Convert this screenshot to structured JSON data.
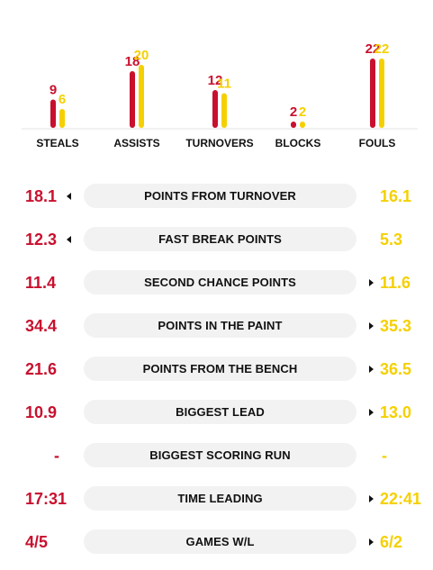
{
  "colors": {
    "home": "#c8102e",
    "away": "#f5d000",
    "pill_bg": "#f2f2f2",
    "text": "#111111"
  },
  "chart_data": {
    "type": "bar",
    "categories": [
      "STEALS",
      "ASSISTS",
      "TURNOVERS",
      "BLOCKS",
      "FOULS"
    ],
    "series": [
      {
        "values": [
          9,
          18,
          12,
          2,
          22
        ],
        "color": "#c8102e"
      },
      {
        "values": [
          6,
          20,
          11,
          2,
          22
        ],
        "color": "#f5d000"
      }
    ],
    "value_labels": [
      [
        "9",
        "6"
      ],
      [
        "18",
        "20"
      ],
      [
        "12",
        "11"
      ],
      [
        "2",
        "2"
      ],
      [
        "22",
        "22"
      ]
    ],
    "grid": false,
    "legend": "none"
  },
  "comparisons": [
    {
      "label": "POINTS FROM TURNOVER",
      "left": "18.1",
      "right": "16.1",
      "leader": "left"
    },
    {
      "label": "FAST BREAK POINTS",
      "left": "12.3",
      "right": "5.3",
      "leader": "left"
    },
    {
      "label": "SECOND CHANCE POINTS",
      "left": "11.4",
      "right": "11.6",
      "leader": "right"
    },
    {
      "label": "POINTS IN THE PAINT",
      "left": "34.4",
      "right": "35.3",
      "leader": "right"
    },
    {
      "label": "POINTS FROM THE BENCH",
      "left": "21.6",
      "right": "36.5",
      "leader": "right"
    },
    {
      "label": "BIGGEST LEAD",
      "left": "10.9",
      "right": "13.0",
      "leader": "right"
    },
    {
      "label": "BIGGEST SCORING RUN",
      "left": "-",
      "right": "-",
      "leader": "none"
    },
    {
      "label": "TIME LEADING",
      "left": "17:31",
      "right": "22:41",
      "leader": "right"
    },
    {
      "label": "GAMES W/L",
      "left": "4/5",
      "right": "6/2",
      "leader": "right"
    }
  ]
}
